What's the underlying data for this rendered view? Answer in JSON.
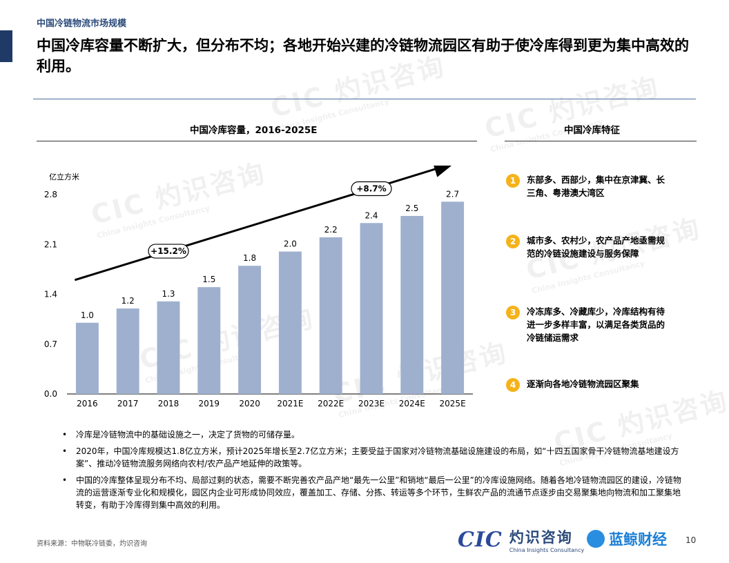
{
  "header": {
    "section_label": "中国冷链物流市场规模",
    "headline": "中国冷库容量不断扩大，但分布不均；各地开始兴建的冷链物流园区有助于使冷库得到更为集中高效的利用。"
  },
  "chart_panel": {
    "title": "中国冷库容量，2016-2025E"
  },
  "chart_data": {
    "type": "bar",
    "title": "中国冷库容量，2016-2025E",
    "ylabel": "亿立方米",
    "xlabel": "",
    "categories": [
      "2016",
      "2017",
      "2018",
      "2019",
      "2020",
      "2021E",
      "2022E",
      "2023E",
      "2024E",
      "2025E"
    ],
    "values": [
      1.0,
      1.2,
      1.3,
      1.5,
      1.8,
      2.0,
      2.2,
      2.4,
      2.5,
      2.7
    ],
    "value_labels": [
      "1.0",
      "1.2",
      "1.3",
      "1.5",
      "1.8",
      "2.0",
      "2.2",
      "2.4",
      "2.5",
      "2.7"
    ],
    "yticks": [
      "0.0",
      "0.7",
      "1.4",
      "2.1",
      "2.8"
    ],
    "ylim": [
      0,
      2.8
    ],
    "grid": false,
    "bar_color": "#9fb0cf",
    "annotations": [
      {
        "label": "+15.2%",
        "from": "2016",
        "to": "2020"
      },
      {
        "label": "+8.7%",
        "from": "2021E",
        "to": "2025E"
      }
    ]
  },
  "features_panel": {
    "title": "中国冷库特征",
    "items": [
      {
        "num": "1",
        "text": "东部多、西部少，集中在京津冀、长三角、粤港澳大湾区"
      },
      {
        "num": "2",
        "text": "城市多、农村少，农产品产地亟需规范的冷链设施建设与服务保障"
      },
      {
        "num": "3",
        "text": "冷冻库多、冷藏库少，冷库结构有待进一步多样丰富，以满足各类货品的冷链储运需求"
      },
      {
        "num": "4",
        "text": "逐渐向各地冷链物流园区聚集"
      }
    ]
  },
  "bullets": [
    "冷库是冷链物流中的基础设施之一，决定了货物的可储存量。",
    "2020年，中国冷库规模达1.8亿立方米，预计2025年增长至2.7亿立方米；主要受益于国家对冷链物流基础设施建设的布局，如“十四五国家骨干冷链物流基地建设方案”、推动冷链物流服务网络向农村/农产品产地延伸的政策等。",
    "中国的冷库整体呈现分布不均、局部过剩的状态，需要不断完善农产品产地“最先一公里”和销地“最后一公里”的冷库设施网络。随着各地冷链物流园区的建设，冷链物流的运营逐渐专业化和规模化，园区内企业可形成协同效应，覆盖加工、存储、分拣、转运等多个环节，生鲜农产品的流通节点逐步由交易聚集地向物流和加工聚集地转变，有助于冷库得到集中高效的利用。"
  ],
  "footer": {
    "source": "资料来源：中物联冷链委，灼识咨询",
    "page_number": "10",
    "cic_mark": "CIC",
    "cic_name_cn": "灼识咨询",
    "cic_name_en": "China Insights Consultancy",
    "partner_name": "蓝鲸财经"
  },
  "watermark": {
    "mark": "CIC 灼识咨询",
    "sub": "China Insights Consultancy"
  },
  "colors": {
    "accent_navy": "#1f3a66",
    "badge_yellow": "#f5b21a",
    "bar": "#9fb0cf"
  }
}
